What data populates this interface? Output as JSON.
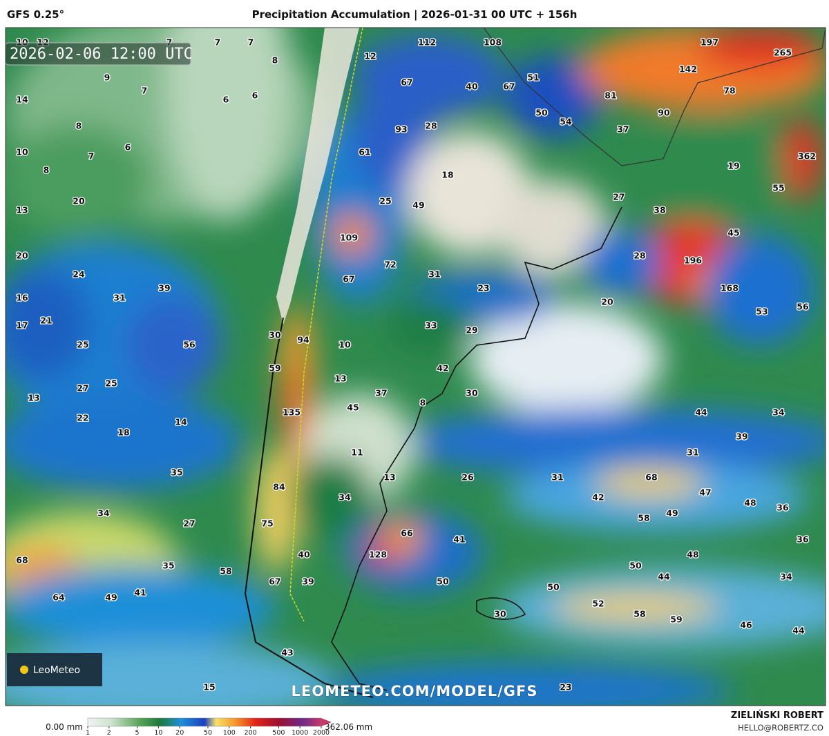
{
  "header": {
    "model": "GFS 0.25°",
    "title": "Precipitation Accumulation | 2026-01-31 00 UTC + 156h"
  },
  "map": {
    "valid_time": "2026-02-06 12:00 UTC",
    "watermark": "LEOMETEO.COM/MODEL/GFS",
    "logo": "LeoMeteo",
    "labels": [
      10,
      12,
      7,
      7,
      7,
      8,
      9,
      7,
      14,
      6,
      6,
      8,
      6,
      10,
      7,
      8,
      20,
      13,
      20,
      24,
      31,
      39,
      16,
      17,
      21,
      25,
      56,
      27,
      25,
      13,
      22,
      14,
      18,
      35,
      34,
      27,
      35,
      68,
      58,
      41,
      64,
      49,
      15,
      12,
      112,
      108,
      197,
      265,
      142,
      67,
      40,
      67,
      51,
      81,
      78,
      50,
      54,
      90,
      93,
      28,
      37,
      61,
      362,
      19,
      18,
      55,
      25,
      49,
      27,
      38,
      109,
      45,
      72,
      196,
      28,
      31,
      67,
      23,
      168,
      20,
      53,
      56,
      33,
      29,
      30,
      94,
      10,
      59,
      42,
      13,
      37,
      30,
      8,
      135,
      45,
      44,
      34,
      39,
      11,
      31,
      13,
      26,
      31,
      68,
      84,
      34,
      42,
      47,
      48,
      36,
      58,
      49,
      75,
      66,
      41,
      36,
      40,
      128,
      48,
      50,
      44,
      34,
      67,
      39,
      50,
      50,
      52,
      58,
      59,
      30,
      46,
      44,
      43,
      23
    ]
  },
  "colorbar": {
    "min_label": "0.00 mm",
    "max_label": "362.06 mm",
    "log_scale": true,
    "range": [
      1,
      2000
    ],
    "ticks": [
      1,
      2,
      5,
      10,
      20,
      50,
      100,
      200,
      500,
      1000,
      2000
    ]
  },
  "footer": {
    "author": "ZIELIŃSKI ROBERT",
    "email": "HELLO@ROBERTZ.CO"
  }
}
